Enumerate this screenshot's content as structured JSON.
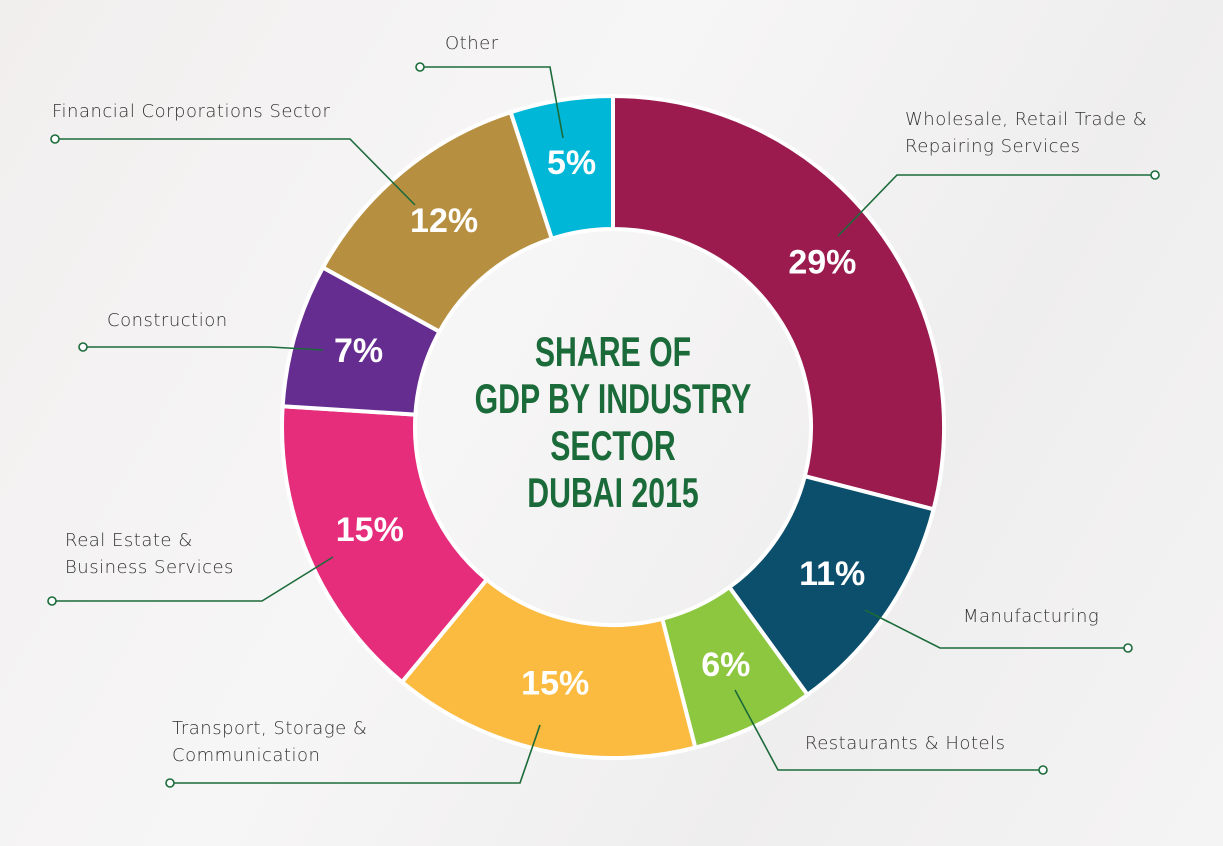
{
  "chart_data": {
    "type": "donut",
    "title": [
      "SHARE OF",
      "GDP BY INDUSTRY",
      "SECTOR",
      "DUBAI 2015"
    ],
    "categories": [
      "Wholesale, Retail Trade & Repairing Services",
      "Manufacturing",
      "Restaurants & Hotels",
      "Transport, Storage & Communication",
      "Real Estate & Business Services",
      "Construction",
      "Financial Corporations Sector",
      "Other"
    ],
    "values": [
      29,
      11,
      6,
      15,
      15,
      7,
      12,
      5
    ],
    "value_labels": [
      "29%",
      "11%",
      "6%",
      "15%",
      "15%",
      "7%",
      "12%",
      "5%"
    ],
    "colors": [
      "#9b1b4f",
      "#0b4f6c",
      "#8dc63f",
      "#fbbb41",
      "#e52d7c",
      "#662d91",
      "#b78f41",
      "#00b7d7"
    ]
  }
}
